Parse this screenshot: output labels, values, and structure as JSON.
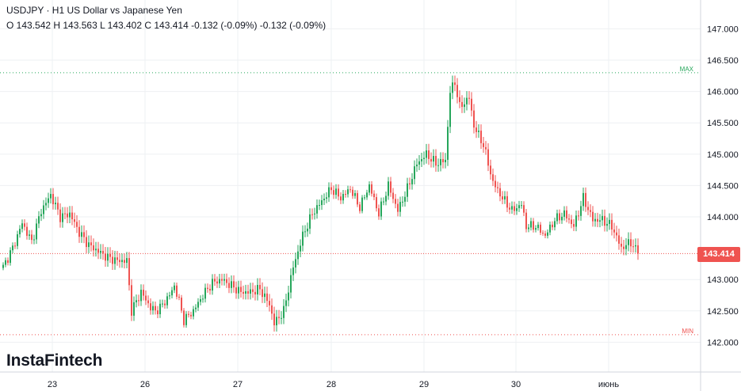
{
  "header": {
    "title": "USDJPY · H1 US Dollar vs Japanese Yen",
    "ohlc": "O 143.542 H 143.563 L 143.402 C 143.414 -0.132 (-0.09%) -0.132 (-0.09%)"
  },
  "logo": "InstaFintech",
  "colors": {
    "up": "#26a65b",
    "down": "#ef5350",
    "grid": "#eef0f3",
    "max_line": "#26a65b",
    "min_line": "#ef5350",
    "last_line": "#ef5350"
  },
  "price_badge": "143.414",
  "chart_data": {
    "type": "candlestick",
    "symbol": "USDJPY",
    "timeframe": "H1",
    "x_axis_labels": [
      "23",
      "26",
      "27",
      "28",
      "29",
      "30",
      "июнь"
    ],
    "y_axis_labels": [
      "147.000",
      "146.500",
      "146.000",
      "145.500",
      "145.000",
      "144.500",
      "144.000",
      "143.000",
      "142.500",
      "142.000"
    ],
    "ylim": [
      141.6,
      147.4
    ],
    "levels": {
      "max_label": "MAX",
      "max": 146.3,
      "min_label": "MIN",
      "min": 142.12,
      "last": 143.414
    },
    "close_path": [
      [
        0,
        143.2
      ],
      [
        4,
        143.5
      ],
      [
        8,
        143.9
      ],
      [
        12,
        143.6
      ],
      [
        16,
        144.1
      ],
      [
        20,
        144.35
      ],
      [
        24,
        144.0
      ],
      [
        28,
        144.05
      ],
      [
        32,
        143.75
      ],
      [
        36,
        143.55
      ],
      [
        40,
        143.45
      ],
      [
        44,
        143.35
      ],
      [
        48,
        143.3
      ],
      [
        52,
        143.3
      ],
      [
        54,
        142.5
      ],
      [
        58,
        142.8
      ],
      [
        62,
        142.55
      ],
      [
        64,
        142.5
      ],
      [
        66,
        142.55
      ],
      [
        70,
        142.75
      ],
      [
        72,
        142.9
      ],
      [
        74,
        142.65
      ],
      [
        76,
        142.35
      ],
      [
        80,
        142.5
      ],
      [
        84,
        142.75
      ],
      [
        88,
        142.95
      ],
      [
        92,
        143.0
      ],
      [
        96,
        142.9
      ],
      [
        100,
        142.8
      ],
      [
        104,
        142.8
      ],
      [
        108,
        142.85
      ],
      [
        112,
        142.6
      ],
      [
        114,
        142.3
      ],
      [
        118,
        142.5
      ],
      [
        122,
        143.2
      ],
      [
        126,
        143.7
      ],
      [
        130,
        144.05
      ],
      [
        134,
        144.25
      ],
      [
        138,
        144.45
      ],
      [
        142,
        144.3
      ],
      [
        146,
        144.45
      ],
      [
        150,
        144.15
      ],
      [
        154,
        144.5
      ],
      [
        158,
        144.05
      ],
      [
        162,
        144.5
      ],
      [
        166,
        144.1
      ],
      [
        170,
        144.45
      ],
      [
        174,
        144.85
      ],
      [
        178,
        145.0
      ],
      [
        182,
        144.85
      ],
      [
        186,
        144.9
      ],
      [
        188,
        146.0
      ],
      [
        190,
        146.15
      ],
      [
        192,
        145.75
      ],
      [
        196,
        145.9
      ],
      [
        198,
        145.45
      ],
      [
        202,
        145.15
      ],
      [
        206,
        144.55
      ],
      [
        210,
        144.3
      ],
      [
        214,
        144.1
      ],
      [
        218,
        144.2
      ],
      [
        220,
        143.85
      ],
      [
        224,
        143.85
      ],
      [
        228,
        143.7
      ],
      [
        232,
        143.95
      ],
      [
        236,
        144.05
      ],
      [
        240,
        143.85
      ],
      [
        244,
        144.3
      ],
      [
        248,
        143.95
      ],
      [
        252,
        143.95
      ],
      [
        256,
        143.85
      ],
      [
        260,
        143.5
      ],
      [
        264,
        143.6
      ],
      [
        267,
        143.414
      ]
    ]
  }
}
